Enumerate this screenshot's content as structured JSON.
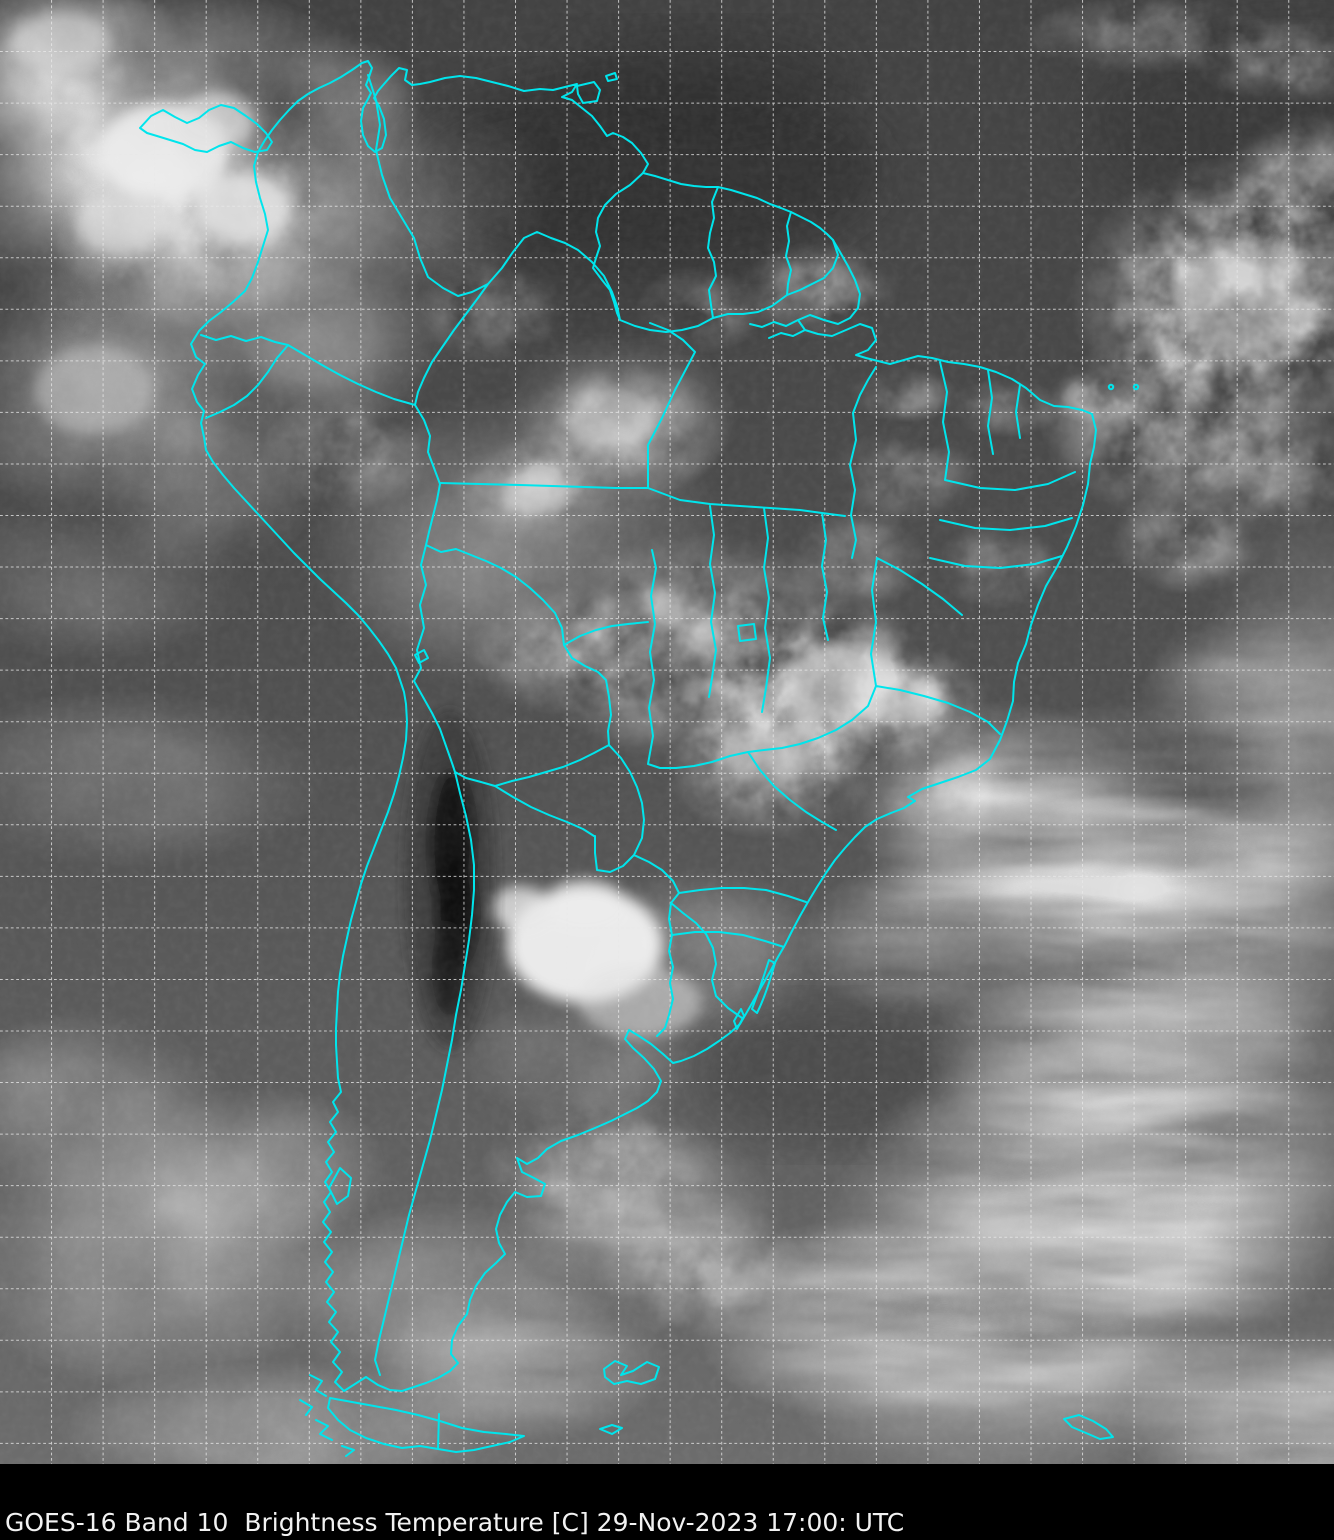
{
  "caption": {
    "text": "GOES-16 Band 10  Brightness Temperature [C] 29-Nov-2023 17:00: UTC",
    "satellite": "GOES-16",
    "band": "Band 10",
    "product": "Brightness Temperature",
    "units": "[C]",
    "timestamp": "29-Nov-2023 17:00: UTC",
    "background_color": "#000000",
    "text_color": "#f2f2f2"
  },
  "map": {
    "depicts": "GOES-16 infrared brightness-temperature satellite view of South America with cloud field",
    "overlays": {
      "political_borders": {
        "color": "#00e5ec",
        "style": "solid"
      },
      "graticule": {
        "color": "#e8e8e8",
        "style": "dashed"
      }
    }
  }
}
